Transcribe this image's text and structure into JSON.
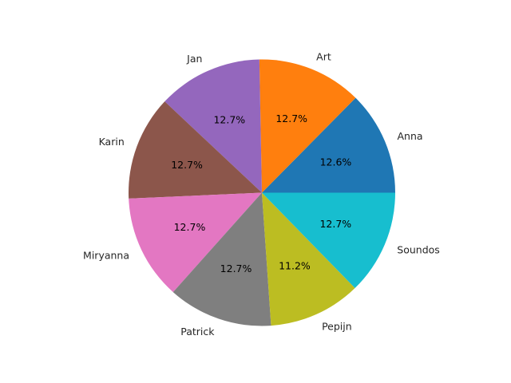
{
  "chart_data": {
    "type": "pie",
    "start_angle_deg": 0,
    "direction": "counterclockwise",
    "slices": [
      {
        "label": "Anna",
        "value": 12.6,
        "pct_text": "12.6%",
        "color": "#1f77b4"
      },
      {
        "label": "Art",
        "value": 12.7,
        "pct_text": "12.7%",
        "color": "#ff7f0e"
      },
      {
        "label": "Jan",
        "value": 12.7,
        "pct_text": "12.7%",
        "color": "#9467bd"
      },
      {
        "label": "Karin",
        "value": 12.7,
        "pct_text": "12.7%",
        "color": "#8c564b"
      },
      {
        "label": "Miryanna",
        "value": 12.7,
        "pct_text": "12.7%",
        "color": "#e377c2"
      },
      {
        "label": "Patrick",
        "value": 12.7,
        "pct_text": "12.7%",
        "color": "#7f7f7f"
      },
      {
        "label": "Pepijn",
        "value": 11.2,
        "pct_text": "11.2%",
        "color": "#bcbd22"
      },
      {
        "label": "Soundos",
        "value": 12.7,
        "pct_text": "12.7%",
        "color": "#17becf"
      }
    ]
  }
}
